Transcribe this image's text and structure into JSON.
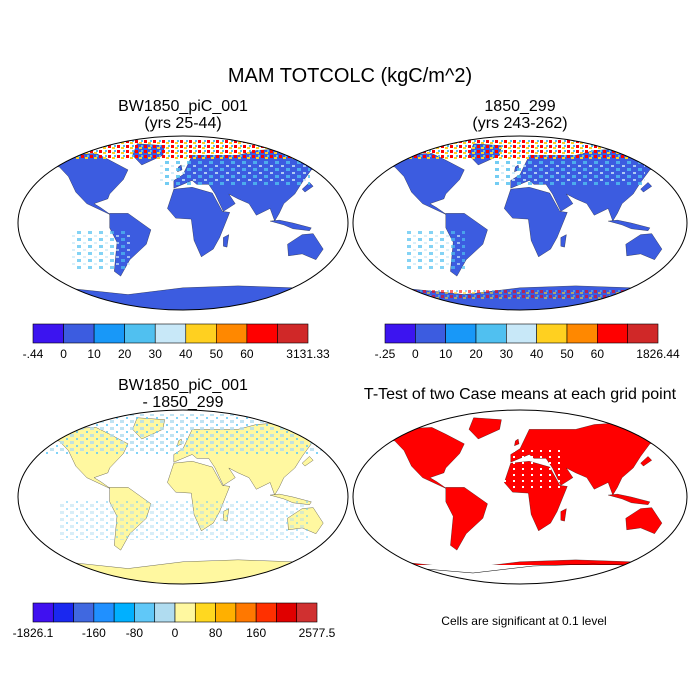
{
  "title": "MAM TOTCOLC (kgC/m^2)",
  "panels": [
    {
      "title": "BW1850_piC_001",
      "subtitle": "(yrs 25-44)",
      "land_color": "#3c5ce0"
    },
    {
      "title": "1850_299",
      "subtitle": "(yrs 243-262)",
      "land_color": "#3c5ce0"
    },
    {
      "title": "BW1850_piC_001",
      "subtitle": "- 1850_299",
      "land_color": "#fff8a0"
    },
    {
      "title": "T-Test of two Case means at each grid point",
      "land_color": "#ff0000"
    }
  ],
  "footnote": "Cells are significant at 0.1 level",
  "colorbars": [
    {
      "colors": [
        "#3c14f0",
        "#3c5ce0",
        "#1898f8",
        "#50c0f0",
        "#c8e8f8",
        "#ffd020",
        "#ff8800",
        "#ff0000",
        "#d02828"
      ],
      "labels": [
        "-.44",
        "0",
        "10",
        "20",
        "30",
        "40",
        "50",
        "60",
        "3131.33"
      ],
      "label_positions": [
        0,
        1,
        2,
        3,
        4,
        5,
        6,
        7,
        9
      ]
    },
    {
      "colors": [
        "#3c14f0",
        "#3c5ce0",
        "#1898f8",
        "#50c0f0",
        "#c8e8f8",
        "#ffd020",
        "#ff8800",
        "#ff0000",
        "#d02828"
      ],
      "labels": [
        "-.25",
        "0",
        "10",
        "20",
        "30",
        "40",
        "50",
        "60",
        "1826.44"
      ],
      "label_positions": [
        0,
        1,
        2,
        3,
        4,
        5,
        6,
        7,
        9
      ]
    },
    {
      "colors": [
        "#4010f0",
        "#1a28f0",
        "#4068e0",
        "#2090ff",
        "#00b0ff",
        "#60c8f8",
        "#b0dcf0",
        "#fff8a0",
        "#ffd820",
        "#ffb000",
        "#ff7800",
        "#ff3000",
        "#e00000",
        "#d03030"
      ],
      "labels": [
        "-1826.1",
        "-160",
        "-80",
        "0",
        "80",
        "160",
        "2577.5"
      ],
      "label_positions": [
        0,
        3,
        5,
        7,
        9,
        11,
        14
      ]
    }
  ]
}
